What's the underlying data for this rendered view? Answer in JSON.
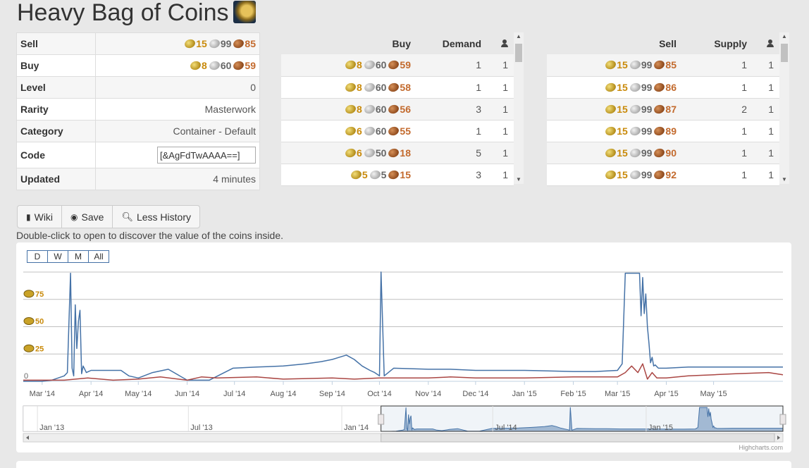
{
  "title": "Heavy Bag of Coins",
  "item_icon": "bag-of-coins-icon",
  "info": {
    "sell": {
      "label": "Sell",
      "g": "15",
      "s": "99",
      "c": "85"
    },
    "buy": {
      "label": "Buy",
      "g": "8",
      "s": "60",
      "c": "59"
    },
    "level": {
      "label": "Level",
      "value": "0"
    },
    "rarity": {
      "label": "Rarity",
      "value": "Masterwork"
    },
    "category": {
      "label": "Category",
      "value": "Container - Default"
    },
    "code": {
      "label": "Code",
      "value": "[&AgFdTwAAAA==]"
    },
    "updated": {
      "label": "Updated",
      "value": "4 minutes"
    }
  },
  "buy_orders": {
    "headers": {
      "price": "Buy",
      "qty": "Demand"
    },
    "rows": [
      {
        "g": "8",
        "s": "60",
        "c": "59",
        "qty": "1",
        "n": "1"
      },
      {
        "g": "8",
        "s": "60",
        "c": "58",
        "qty": "1",
        "n": "1"
      },
      {
        "g": "8",
        "s": "60",
        "c": "56",
        "qty": "3",
        "n": "1"
      },
      {
        "g": "6",
        "s": "60",
        "c": "55",
        "qty": "1",
        "n": "1"
      },
      {
        "g": "6",
        "s": "50",
        "c": "18",
        "qty": "5",
        "n": "1"
      },
      {
        "g": "5",
        "s": "5",
        "c": "15",
        "qty": "3",
        "n": "1"
      }
    ]
  },
  "sell_orders": {
    "headers": {
      "price": "Sell",
      "qty": "Supply"
    },
    "rows": [
      {
        "g": "15",
        "s": "99",
        "c": "85",
        "qty": "1",
        "n": "1"
      },
      {
        "g": "15",
        "s": "99",
        "c": "86",
        "qty": "1",
        "n": "1"
      },
      {
        "g": "15",
        "s": "99",
        "c": "87",
        "qty": "2",
        "n": "1"
      },
      {
        "g": "15",
        "s": "99",
        "c": "89",
        "qty": "1",
        "n": "1"
      },
      {
        "g": "15",
        "s": "99",
        "c": "90",
        "qty": "1",
        "n": "1"
      },
      {
        "g": "15",
        "s": "99",
        "c": "92",
        "qty": "1",
        "n": "1"
      }
    ]
  },
  "buttons": {
    "wiki": "Wiki",
    "save": "Save",
    "history": "Less History"
  },
  "description": "Double-click to open to discover the value of the coins inside.",
  "credits": "Highcharts.com",
  "chart_data": {
    "type": "line",
    "zoom_buttons": [
      "D",
      "W",
      "M",
      "All"
    ],
    "y_ticks": [
      {
        "value": 0,
        "label": "0"
      },
      {
        "value": 25,
        "label": "25"
      },
      {
        "value": 50,
        "label": "50"
      },
      {
        "value": 75,
        "label": "75"
      }
    ],
    "y_tick_coin_icon": "gold-coin-icon",
    "ylim": [
      0,
      100
    ],
    "y_unit": "gold",
    "x_range": [
      "2014-02-17",
      "2015-06-14"
    ],
    "x_ticks": [
      "Mar '14",
      "Apr '14",
      "May '14",
      "Jun '14",
      "Jul '14",
      "Aug '14",
      "Sep '14",
      "Oct '14",
      "Nov '14",
      "Dec '14",
      "Jan '15",
      "Feb '15",
      "Mar '15",
      "Apr '15",
      "May '15"
    ],
    "series": [
      {
        "color": "#4572a7",
        "x": [
          "2014-02-17",
          "2014-03-01",
          "2014-03-07",
          "2014-03-15",
          "2014-03-17",
          "2014-03-18",
          "2014-03-19",
          "2014-03-20",
          "2014-03-21",
          "2014-03-22",
          "2014-03-23",
          "2014-03-24",
          "2014-03-25",
          "2014-03-26",
          "2014-03-27",
          "2014-03-29",
          "2014-04-01",
          "2014-04-20",
          "2014-04-25",
          "2014-05-01",
          "2014-05-10",
          "2014-05-20",
          "2014-06-01",
          "2014-06-15",
          "2014-06-30",
          "2014-07-15",
          "2014-08-01",
          "2014-08-15",
          "2014-08-25",
          "2014-09-01",
          "2014-09-10",
          "2014-09-15",
          "2014-09-20",
          "2014-09-25",
          "2014-09-28",
          "2014-10-01",
          "2014-10-02",
          "2014-10-04",
          "2014-10-10",
          "2014-11-01",
          "2014-11-15",
          "2014-12-01",
          "2014-12-15",
          "2015-01-01",
          "2015-02-01",
          "2015-02-15",
          "2015-03-01",
          "2015-03-04",
          "2015-03-06",
          "2015-03-15",
          "2015-03-16",
          "2015-03-17",
          "2015-03-18",
          "2015-03-19",
          "2015-03-20",
          "2015-03-21",
          "2015-03-22",
          "2015-03-23",
          "2015-03-24",
          "2015-03-25",
          "2015-03-27",
          "2015-04-01",
          "2015-04-15",
          "2015-05-01",
          "2015-06-14"
        ],
        "values": [
          0,
          0,
          1,
          5,
          8,
          55,
          99,
          12,
          5,
          70,
          30,
          55,
          65,
          7,
          14,
          8,
          10,
          10,
          5,
          3,
          8,
          11,
          1,
          1,
          12,
          13,
          14,
          16,
          18,
          20,
          24,
          20,
          14,
          10,
          8,
          5,
          100,
          5,
          12,
          11,
          11,
          10,
          10,
          10,
          9,
          9,
          10,
          16,
          99,
          99,
          60,
          95,
          62,
          80,
          50,
          35,
          17,
          22,
          14,
          15,
          12,
          12,
          13,
          13,
          13
        ]
      },
      {
        "color": "#aa4643",
        "x": [
          "2014-02-17",
          "2014-03-15",
          "2014-03-30",
          "2014-04-15",
          "2014-05-01",
          "2014-05-15",
          "2014-06-01",
          "2014-06-10",
          "2014-06-20",
          "2014-07-15",
          "2014-08-01",
          "2014-09-01",
          "2014-09-15",
          "2014-10-01",
          "2014-10-15",
          "2014-11-01",
          "2014-11-15",
          "2014-12-01",
          "2015-01-01",
          "2015-02-01",
          "2015-02-15",
          "2015-03-01",
          "2015-03-06",
          "2015-03-10",
          "2015-03-14",
          "2015-03-17",
          "2015-03-20",
          "2015-03-23",
          "2015-03-26",
          "2015-04-01",
          "2015-04-15",
          "2015-05-01",
          "2015-05-15",
          "2015-06-05",
          "2015-06-14"
        ],
        "values": [
          1,
          1,
          3,
          1,
          2,
          4,
          1,
          4,
          3,
          4,
          2,
          3,
          2,
          3,
          3,
          3,
          4,
          3,
          3,
          4,
          4,
          4,
          8,
          14,
          8,
          16,
          2,
          8,
          3,
          3,
          5,
          6,
          7,
          8,
          6
        ]
      }
    ],
    "navigator": {
      "x_range": [
        "2012-12-15",
        "2015-06-14"
      ],
      "ticks": [
        "Jan '13",
        "Jul '13",
        "Jan '14",
        "Jul '14",
        "Jan '15"
      ],
      "selected_range": [
        "2014-02-17",
        "2015-06-14"
      ]
    }
  }
}
